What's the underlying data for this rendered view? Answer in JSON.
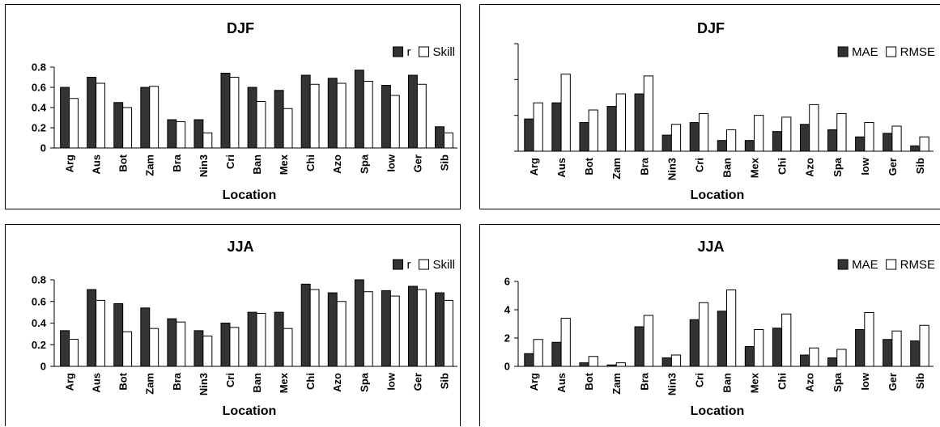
{
  "colors": {
    "dark_bar": "#333333",
    "light_bar": "#ffffff",
    "axis": "#000000"
  },
  "chart_data": [
    {
      "type": "bar",
      "title": "DJF",
      "xlabel": "Location",
      "ylabel": "",
      "ylim": [
        0,
        0.8
      ],
      "yticks": [
        "0",
        "0.2",
        "0.4",
        "0.6",
        "0.8"
      ],
      "yticks_visible": true,
      "legend": "top-right",
      "categories": [
        "Arg",
        "Aus",
        "Bot",
        "Zam",
        "Bra",
        "Nin3",
        "Cri",
        "Ban",
        "Mex",
        "Chi",
        "Azo",
        "Spa",
        "Iow",
        "Ger",
        "Sib"
      ],
      "series": [
        {
          "name": "r",
          "values": [
            0.6,
            0.7,
            0.45,
            0.6,
            0.28,
            0.28,
            0.74,
            0.6,
            0.57,
            0.72,
            0.69,
            0.77,
            0.62,
            0.72,
            0.21
          ]
        },
        {
          "name": "Skill",
          "values": [
            0.49,
            0.64,
            0.4,
            0.61,
            0.26,
            0.15,
            0.7,
            0.46,
            0.39,
            0.63,
            0.64,
            0.66,
            0.52,
            0.63,
            0.15
          ]
        }
      ]
    },
    {
      "type": "bar",
      "title": "DJF",
      "xlabel": "Location",
      "ylabel": "",
      "ylim": [
        0,
        6
      ],
      "yticks": [
        "",
        "",
        "",
        ""
      ],
      "yticks_visible": false,
      "legend": "top-right",
      "categories": [
        "Arg",
        "Aus",
        "Bot",
        "Zam",
        "Bra",
        "Nin3",
        "Cri",
        "Ban",
        "Mex",
        "Chi",
        "Azo",
        "Spa",
        "Iow",
        "Ger",
        "Sib"
      ],
      "series": [
        {
          "name": "MAE",
          "values": [
            1.8,
            2.7,
            1.6,
            2.5,
            3.2,
            0.9,
            1.6,
            0.6,
            0.6,
            1.1,
            1.5,
            1.2,
            0.8,
            1.0,
            0.3
          ]
        },
        {
          "name": "RMSE",
          "values": [
            2.7,
            4.3,
            2.3,
            3.2,
            4.2,
            1.5,
            2.1,
            1.2,
            2.0,
            1.9,
            2.6,
            2.1,
            1.6,
            1.4,
            0.8
          ]
        }
      ]
    },
    {
      "type": "bar",
      "title": "JJA",
      "xlabel": "Location",
      "ylabel": "",
      "ylim": [
        0,
        0.8
      ],
      "yticks": [
        "0",
        "0.2",
        "0.4",
        "0.6",
        "0.8"
      ],
      "yticks_visible": true,
      "legend": "top-right",
      "categories": [
        "Arg",
        "Aus",
        "Bot",
        "Zam",
        "Bra",
        "Nin3",
        "Cri",
        "Ban",
        "Mex",
        "Chi",
        "Azo",
        "Spa",
        "Iow",
        "Ger",
        "Sib"
      ],
      "series": [
        {
          "name": "r",
          "values": [
            0.33,
            0.71,
            0.58,
            0.54,
            0.44,
            0.33,
            0.4,
            0.5,
            0.5,
            0.76,
            0.68,
            0.8,
            0.7,
            0.74,
            0.68
          ]
        },
        {
          "name": "Skill",
          "values": [
            0.25,
            0.61,
            0.32,
            0.35,
            0.41,
            0.28,
            0.36,
            0.49,
            0.35,
            0.71,
            0.6,
            0.69,
            0.65,
            0.71,
            0.61
          ]
        }
      ]
    },
    {
      "type": "bar",
      "title": "JJA",
      "xlabel": "Location",
      "ylabel": "",
      "ylim": [
        0,
        6
      ],
      "yticks": [
        "0",
        "2",
        "4",
        "6"
      ],
      "yticks_visible": true,
      "legend": "top-right",
      "categories": [
        "Arg",
        "Aus",
        "Bot",
        "Zam",
        "Bra",
        "Nin3",
        "Cri",
        "Ban",
        "Mex",
        "Chi",
        "Azo",
        "Spa",
        "Iow",
        "Ger",
        "Sib"
      ],
      "series": [
        {
          "name": "MAE",
          "values": [
            0.9,
            1.7,
            0.25,
            0.1,
            2.8,
            0.6,
            3.3,
            3.9,
            1.4,
            2.7,
            0.8,
            0.6,
            2.6,
            1.9,
            1.8
          ]
        },
        {
          "name": "RMSE",
          "values": [
            1.9,
            3.4,
            0.7,
            0.25,
            3.6,
            0.8,
            4.5,
            5.4,
            2.6,
            3.7,
            1.3,
            1.2,
            3.8,
            2.5,
            2.9
          ]
        }
      ]
    }
  ]
}
